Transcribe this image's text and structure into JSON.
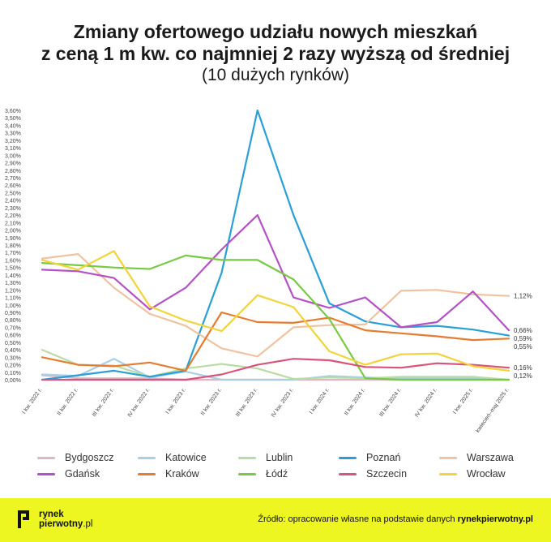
{
  "title": {
    "line1": "Zmiany ofertowego udziału nowych mieszkań",
    "line2": "z ceną 1 m kw. co najmniej 2 razy wyższą od średniej",
    "line3": "(10 dużych rynków)"
  },
  "chart_data": {
    "type": "line",
    "ylim": [
      0,
      3.6
    ],
    "y_ticks": [
      "0,00%",
      "0,10%",
      "0,20%",
      "0,30%",
      "0,40%",
      "0,50%",
      "0,60%",
      "0,70%",
      "0,80%",
      "0,90%",
      "1,00%",
      "1,10%",
      "1,20%",
      "1,30%",
      "1,40%",
      "1,50%",
      "1,60%",
      "1,70%",
      "1,80%",
      "1,90%",
      "2,00%",
      "2,10%",
      "2,20%",
      "2,30%",
      "2,40%",
      "2,50%",
      "2,60%",
      "2,70%",
      "2,80%",
      "2,90%",
      "3,00%",
      "3,10%",
      "3,20%",
      "3,30%",
      "3,40%",
      "3,50%",
      "3,60%"
    ],
    "categories": [
      "I kw. 2022 r.",
      "II kw. 2022 r.",
      "III kw. 2022 r.",
      "IV kw. 2022 r.",
      "I kw. 2023 r.",
      "II kw. 2023 r.",
      "III kw. 2023 r.",
      "IV kw. 2023 r.",
      "I kw. 2024 r.",
      "II kw. 2024 r.",
      "III kw. 2024 r.",
      "IV kw. 2024 r.",
      "I kw. 2025 r.",
      "kwiecień–maj 2025 r."
    ],
    "grid": false,
    "legend_position": "bottom",
    "series": [
      {
        "name": "Bydgoszcz",
        "color": "#e2b4c6",
        "values": [
          0.06,
          0.02,
          0.02,
          0.02,
          0.0,
          0.0,
          0.0,
          0.0,
          0.0,
          0.0,
          0.0,
          0.0,
          0.0,
          0.0
        ]
      },
      {
        "name": "Katowice",
        "color": "#a8cfe6",
        "values": [
          0.07,
          0.05,
          0.28,
          0.03,
          0.11,
          0.0,
          0.0,
          0.0,
          0.05,
          0.03,
          0.02,
          0.02,
          0.02,
          0.0
        ]
      },
      {
        "name": "Lublin",
        "color": "#b9dca4",
        "values": [
          0.4,
          0.2,
          0.19,
          0.04,
          0.15,
          0.21,
          0.15,
          0.01,
          0.03,
          0.02,
          0.04,
          0.04,
          0.04,
          0.0
        ]
      },
      {
        "name": "Poznań",
        "color": "#2a9fd6",
        "values": [
          0.0,
          0.06,
          0.12,
          0.04,
          0.12,
          1.43,
          3.6,
          2.2,
          1.02,
          0.78,
          0.7,
          0.72,
          0.67,
          0.59
        ]
      },
      {
        "name": "Warszawa",
        "color": "#efc3a2",
        "values": [
          1.62,
          1.68,
          1.23,
          0.88,
          0.72,
          0.42,
          0.31,
          0.7,
          0.73,
          0.74,
          1.19,
          1.2,
          1.14,
          1.12
        ]
      },
      {
        "name": "Gdańsk",
        "color": "#b451c7",
        "values": [
          1.47,
          1.45,
          1.36,
          0.94,
          1.23,
          1.74,
          2.2,
          1.1,
          0.96,
          1.1,
          0.7,
          0.77,
          1.18,
          0.66
        ]
      },
      {
        "name": "Kraków",
        "color": "#e47d32",
        "values": [
          0.3,
          0.2,
          0.18,
          0.23,
          0.12,
          0.9,
          0.77,
          0.76,
          0.83,
          0.66,
          0.62,
          0.58,
          0.53,
          0.55
        ]
      },
      {
        "name": "Łódź",
        "color": "#7ac943",
        "values": [
          1.56,
          1.53,
          1.5,
          1.48,
          1.66,
          1.6,
          1.6,
          1.34,
          0.81,
          0.02,
          0.0,
          0.0,
          0.0,
          0.0
        ]
      },
      {
        "name": "Szczecin",
        "color": "#d9547a",
        "values": [
          0.0,
          0.0,
          0.0,
          0.0,
          0.0,
          0.07,
          0.2,
          0.28,
          0.26,
          0.17,
          0.16,
          0.22,
          0.2,
          0.16
        ]
      },
      {
        "name": "Wrocław",
        "color": "#f2d43a",
        "values": [
          1.6,
          1.47,
          1.72,
          0.98,
          0.79,
          0.65,
          1.13,
          0.97,
          0.38,
          0.2,
          0.34,
          0.35,
          0.18,
          0.12
        ]
      }
    ],
    "end_labels": [
      {
        "text": "1,12%",
        "value": 1.12
      },
      {
        "text": "0,66%",
        "value": 0.66
      },
      {
        "text": "0,59%",
        "value": 0.59
      },
      {
        "text": "0,55%",
        "value": 0.55
      },
      {
        "text": "0,16%",
        "value": 0.16
      },
      {
        "text": "0,12%",
        "value": 0.12
      }
    ]
  },
  "legend": {
    "col1": [
      "Bydgoszcz",
      "Gdańsk"
    ],
    "col2": [
      "Katowice",
      "Kraków"
    ],
    "col3": [
      "Lublin",
      "Łódź"
    ],
    "col4": [
      "Poznań",
      "Szczecin"
    ],
    "col5": [
      "Warszawa",
      "Wrocław"
    ]
  },
  "footer": {
    "logo_line1": "rynek",
    "logo_line2": "pierwotny",
    "logo_suffix": ".pl",
    "source_prefix": "Źródło: opracowanie własne na podstawie danych",
    "source_brand": "rynekpierwotny.pl",
    "background": "#eef621"
  }
}
